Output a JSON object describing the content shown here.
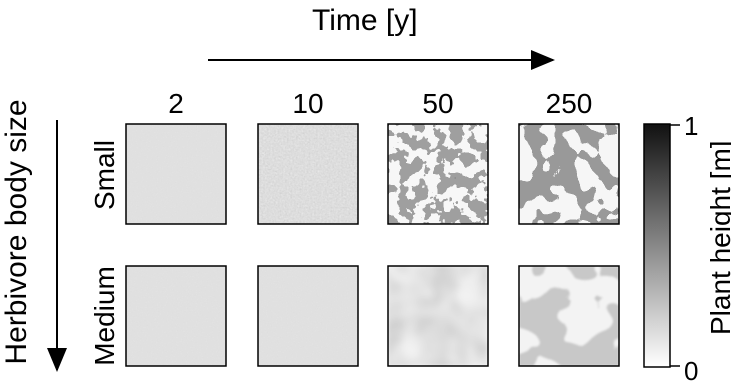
{
  "time_axis": {
    "title": "Time [y]"
  },
  "y_axis": {
    "title": "Herbivore body size"
  },
  "columns": [
    "2",
    "10",
    "50",
    "250"
  ],
  "rows": [
    "Small",
    "Medium"
  ],
  "colorbar": {
    "label": "Plant height [m]",
    "max_label": "1",
    "min_label": "0",
    "color_high": "#111111",
    "color_low": "#ffffff"
  },
  "panel_patterns": [
    [
      "uniform",
      "fine-noise",
      "high-contrast-patches",
      "large-patches"
    ],
    [
      "uniform",
      "uniform",
      "soft-patches",
      "large-soft-patches"
    ]
  ]
}
